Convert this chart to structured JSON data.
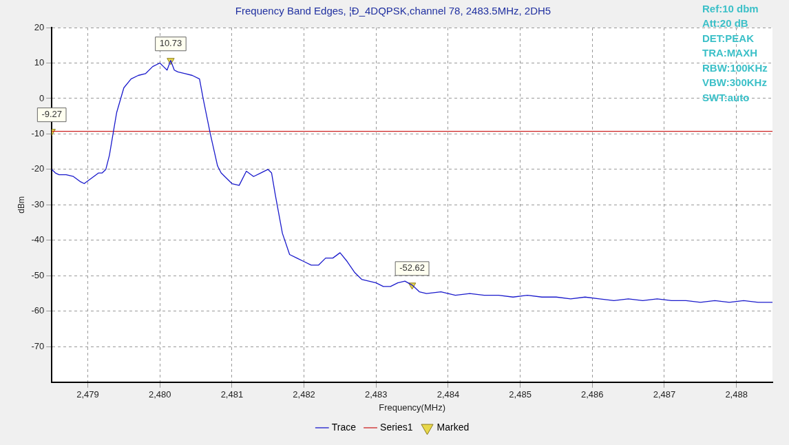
{
  "chart_data": {
    "type": "line",
    "title": "Frequency Band Edges, ¦Đ_4DQPSK,channel 78, 2483.5MHz, 2DH5",
    "xlabel": "Frequency(MHz)",
    "ylabel": "dBm",
    "annotations": [
      "Ref:10 dbm",
      "Att:20 dB",
      "DET:PEAK",
      "TRA:MAXH",
      "RBW:100KHz",
      "VBW:300KHz",
      "SWT:auto"
    ],
    "xlim": [
      2478.5,
      2488.5
    ],
    "xticks": [
      {
        "value": 2479,
        "label": "2,479"
      },
      {
        "value": 2480,
        "label": "2,480"
      },
      {
        "value": 2481,
        "label": "2,481"
      },
      {
        "value": 2482,
        "label": "2,482"
      },
      {
        "value": 2483,
        "label": "2,483"
      },
      {
        "value": 2484,
        "label": "2,484"
      },
      {
        "value": 2485,
        "label": "2,485"
      },
      {
        "value": 2486,
        "label": "2,486"
      },
      {
        "value": 2487,
        "label": "2,487"
      },
      {
        "value": 2488,
        "label": "2,488"
      }
    ],
    "ylim": [
      -80,
      20
    ],
    "yticks": [
      -70,
      -60,
      -50,
      -40,
      -30,
      -20,
      -10,
      0,
      10,
      20
    ],
    "grid": true,
    "legend": "bottom",
    "line_style": "solid",
    "series": [
      {
        "name": "Trace",
        "color": "#1a1acc",
        "x": [
          2478.5,
          2478.55,
          2478.6,
          2478.7,
          2478.8,
          2478.9,
          2478.95,
          2479.05,
          2479.15,
          2479.2,
          2479.25,
          2479.3,
          2479.35,
          2479.4,
          2479.5,
          2479.6,
          2479.7,
          2479.8,
          2479.9,
          2480.0,
          2480.05,
          2480.1,
          2480.15,
          2480.2,
          2480.25,
          2480.35,
          2480.45,
          2480.55,
          2480.6,
          2480.65,
          2480.7,
          2480.8,
          2480.85,
          2480.9,
          2481.0,
          2481.1,
          2481.2,
          2481.3,
          2481.4,
          2481.5,
          2481.55,
          2481.6,
          2481.7,
          2481.8,
          2481.9,
          2482.0,
          2482.1,
          2482.2,
          2482.3,
          2482.4,
          2482.5,
          2482.6,
          2482.7,
          2482.8,
          2482.9,
          2483.0,
          2483.1,
          2483.2,
          2483.3,
          2483.4,
          2483.5,
          2483.6,
          2483.7,
          2483.9,
          2484.1,
          2484.3,
          2484.5,
          2484.7,
          2484.9,
          2485.1,
          2485.3,
          2485.5,
          2485.7,
          2485.9,
          2486.1,
          2486.3,
          2486.5,
          2486.7,
          2486.9,
          2487.1,
          2487.3,
          2487.5,
          2487.7,
          2487.9,
          2488.1,
          2488.3,
          2488.5
        ],
        "values": [
          -20,
          -21,
          -21.5,
          -21.5,
          -22,
          -23.5,
          -24,
          -22.5,
          -21,
          -21,
          -20,
          -16,
          -10,
          -4,
          3,
          5.5,
          6.5,
          7,
          9,
          10,
          9,
          8,
          10.73,
          8,
          7.5,
          7,
          6.5,
          5.5,
          0,
          -5,
          -10,
          -19,
          -21,
          -22,
          -24,
          -24.5,
          -20.5,
          -22,
          -21,
          -20,
          -21,
          -27,
          -38,
          -44,
          -45,
          -46,
          -47,
          -47,
          -45,
          -45,
          -43.5,
          -46,
          -49,
          -51,
          -51.5,
          -52,
          -53,
          -53,
          -52,
          -51.5,
          -52.62,
          -54.5,
          -55,
          -54.5,
          -55.5,
          -55,
          -55.5,
          -55.5,
          -56,
          -55.5,
          -56,
          -56,
          -56.5,
          -56,
          -56.5,
          -57,
          -56.5,
          -57,
          -56.5,
          -57,
          -57,
          -57.5,
          -57,
          -57.5,
          -57,
          -57.5,
          -57.5
        ]
      },
      {
        "name": "Series1",
        "color": "#cc2222",
        "x": [
          2478.5,
          2488.5
        ],
        "values": [
          -9.27,
          -9.27
        ]
      },
      {
        "name": "Marked",
        "type": "scatter",
        "marker": "triangle",
        "color": "#e8d84a",
        "x": [
          2478.5,
          2480.15,
          2483.5
        ],
        "values": [
          -9.27,
          10.73,
          -52.62
        ],
        "value_labels": [
          "-9.27",
          "10.73",
          "-52.62"
        ]
      }
    ]
  }
}
